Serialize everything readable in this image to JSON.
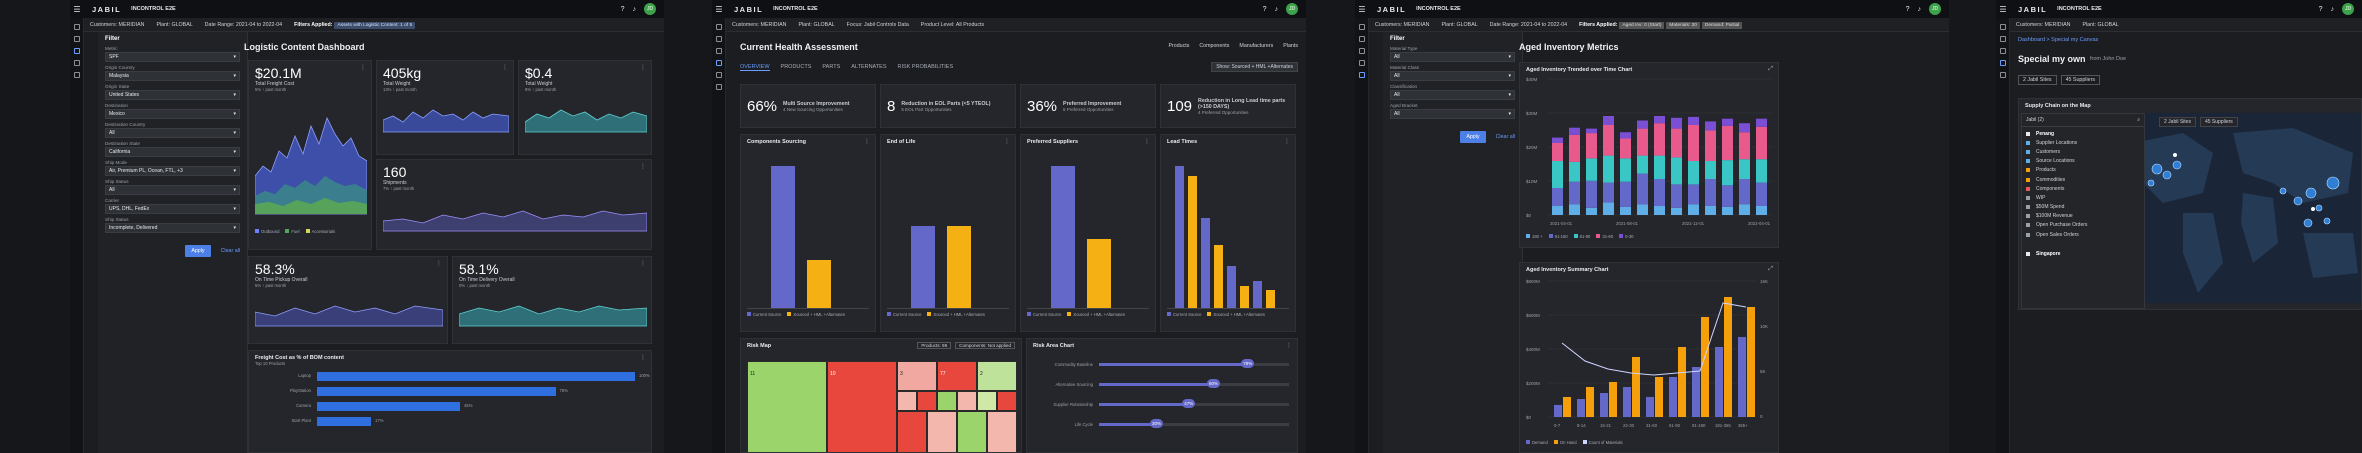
{
  "brand": {
    "logo": "JABIL",
    "app": "INCONTROL E2E",
    "avatar": "JD"
  },
  "w1": {
    "filters": {
      "customers": "Customers: MERIDIAN",
      "plants": "Plant: GLOBAL",
      "date": "Date Range: 2021-04 to 2022-04",
      "applied": "Filters Applied:",
      "chip": "Assets with Logistic Content: 1 of 5"
    },
    "panel": {
      "title": "Filter",
      "fields": [
        {
          "label": "Metric",
          "value": "SPF"
        },
        {
          "label": "Origin Country",
          "value": "Malaysia"
        },
        {
          "label": "Origin State",
          "value": "United States"
        },
        {
          "label": "Destination",
          "value": "Mexico"
        },
        {
          "label": "Destination Country",
          "value": "All"
        },
        {
          "label": "Destination State",
          "value": "California"
        },
        {
          "label": "Ship Mode",
          "value": "Air, Premium PL, Ocean, FTL, +3"
        },
        {
          "label": "Ship Status",
          "value": "All"
        },
        {
          "label": "Carrier",
          "value": "UPS, DHL, FedEx"
        },
        {
          "label": "Ship Status",
          "value": "Incomplete, Delivered"
        }
      ],
      "apply": "Apply",
      "clear": "Clear all"
    },
    "title": "Logistic Content Dashboard",
    "k1": {
      "value": "$20.1M",
      "label": "Total Freight Cost",
      "sub": "5% ↑ past month"
    },
    "k2": {
      "value": "405kg",
      "label": "Total Weight",
      "sub": "13% ↑ past month"
    },
    "k3": {
      "value": "$0.4",
      "label": "Total Weight",
      "sub": "8% ↑ past month"
    },
    "k4": {
      "value": "160",
      "label": "Shipments",
      "sub": "7% ↑ past month"
    },
    "k5": {
      "value": "58.3%",
      "label": "On Time Pickup Overall",
      "sub": "5% ↑ past month"
    },
    "k6": {
      "value": "58.1%",
      "label": "On Time Delivery Overall",
      "sub": "0% ↓ past month"
    },
    "area_legend": [
      "Outbound",
      "Fuel",
      "Accessorials"
    ],
    "bom": {
      "title": "Freight Cost as % of BOM content",
      "sub": "Top 10 Products",
      "labels": [
        "Laptop",
        "PlayStation",
        "Camera",
        "Start Plant"
      ],
      "values": [
        100,
        75,
        45,
        17
      ],
      "vlabels": [
        "100%",
        "75%",
        "45%",
        "17%"
      ]
    }
  },
  "w2": {
    "filters": {
      "customers": "Customers: MERIDIAN",
      "plants": "Plant: GLOBAL",
      "focus": "Focus: Jabil Controls Data",
      "level": "Product Level: All Products"
    },
    "title": "Current Health Assessment",
    "counts": [
      "Products",
      "Components",
      "Manufacturers",
      "Plants"
    ],
    "tabs": [
      "OVERVIEW",
      "PRODUCTS",
      "PARTS",
      "ALTERNATES",
      "RISK PROBABILITIES"
    ],
    "select": "Show: Sourced + HML +Alternates",
    "kpis": [
      {
        "value": "66%",
        "label": "Multi Source Improvement",
        "sub": "4 New Sourcing Opportunities"
      },
      {
        "value": "8",
        "label": "Reduction in EOL Parts (<5 YTEOL)",
        "sub": "5 EOL Part Opportunities"
      },
      {
        "value": "36%",
        "label": "Preferred Improvement",
        "sub": "5 Preferred Opportunities"
      },
      {
        "value": "109",
        "label": "Reduction in Long Lead time parts (>150 DAYS)",
        "sub": "4 Preferred Opportunities"
      }
    ],
    "charts": [
      {
        "title": "Components Sourcing",
        "values": [
          95,
          32
        ]
      },
      {
        "title": "End of Life",
        "values": [
          55,
          55
        ]
      },
      {
        "title": "Preferred Suppliers",
        "values": [
          95,
          46
        ]
      },
      {
        "title": "Lead Times",
        "values": [
          95,
          88,
          60,
          42,
          28,
          15,
          18,
          12
        ]
      }
    ],
    "chart_legend": [
      "Current Source",
      "Sourced + HML +Alternates"
    ],
    "riskmap": {
      "title": "Risk Map",
      "a": "Products: 98",
      "b": "Components: Not applied",
      "nums": [
        "11",
        "10",
        "3",
        "77",
        "2"
      ]
    },
    "riskarea": {
      "title": "Risk Area Chart",
      "rows": [
        {
          "label": "Commodity Baseline",
          "v": 78,
          "t": "78%"
        },
        {
          "label": "Alternative Sourcing",
          "v": 60,
          "t": "60%"
        },
        {
          "label": "Supplier Relationship",
          "v": 47,
          "t": "47%"
        },
        {
          "label": "Life Cycle",
          "v": 30,
          "t": "30%"
        }
      ]
    }
  },
  "w3": {
    "filters": {
      "customers": "Customers: MERIDIAN",
      "plants": "Plant: GLOBAL",
      "date": "Date Range: 2021-04 to 2022-04",
      "applied": "Filters Applied:",
      "chips": [
        "Aged Inv: 0 (Start)",
        "Materials: 30",
        "Demand: Partial"
      ]
    },
    "panel": {
      "title": "Filter",
      "fields": [
        {
          "label": "Material Type",
          "value": "All"
        },
        {
          "label": "Material Class",
          "value": "All"
        },
        {
          "label": "Classification",
          "value": "All"
        },
        {
          "label": "Aged Bracket",
          "value": "All"
        }
      ],
      "apply": "Apply",
      "clear": "Clear all"
    },
    "title": "Aged Inventory Metrics",
    "c1": {
      "title": "Aged Inventory Trended over Time Chart",
      "ylabel": "AMOUNT",
      "ticks": [
        "$40M",
        "$30M",
        "$20M",
        "$10M",
        "$0"
      ],
      "xt": [
        "2021-04-01",
        "2021-08-01",
        "2021-12-01",
        "2022-04-01"
      ],
      "legend": [
        "180 +",
        "91-180",
        "61-90",
        "31-60",
        "0-30"
      ]
    },
    "c2": {
      "title": "Aged Inventory Summary Chart",
      "ticks": [
        "$800M",
        "$600M",
        "$400M",
        "$200M",
        "$0"
      ],
      "rt": [
        "15K",
        "10K",
        "5K",
        "0"
      ],
      "xt": [
        "0-7",
        "8-14",
        "15-21",
        "22-30",
        "31-60",
        "61-90",
        "91-180",
        "181-365",
        "365+"
      ],
      "legend": [
        "Demand",
        "On Hand",
        "Count of Materials"
      ]
    }
  },
  "w4": {
    "filters": {
      "customers": "Customers: MERIDIAN",
      "plants": "Plant: GLOBAL"
    },
    "crumb": "Dashboard > Special my Canvas",
    "title": "Special my own",
    "sub": "from John Doe",
    "chips": [
      "2 Jabil Sites",
      "45 Suppliers"
    ],
    "map_title": "Supply Chain on the Map",
    "search": "Jabil (2)",
    "list": [
      "Penang",
      "Supplier Locations",
      "Customers",
      "Source Locations",
      "Products",
      "Commodities",
      "Components",
      "WIP",
      "$50M Spend",
      "$100M Revenue",
      "Open Purchase Orders",
      "Open Sales Orders",
      "Singapore"
    ],
    "mchips": [
      "2 Jabil Sites",
      "45 Suppliers"
    ]
  }
}
